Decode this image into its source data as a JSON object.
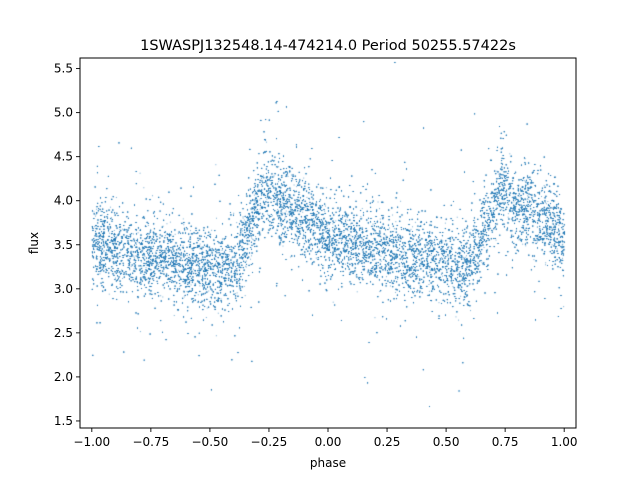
{
  "chart_data": {
    "type": "scatter",
    "title": "1SWASPJ132548.14-474214.0 Period 50255.57422s",
    "xlabel": "phase",
    "ylabel": "flux",
    "xlim": [
      -1.05,
      1.05
    ],
    "ylim": [
      1.42,
      5.62
    ],
    "xticks": [
      {
        "value": -1.0,
        "label": "−1.00"
      },
      {
        "value": -0.75,
        "label": "−0.75"
      },
      {
        "value": -0.5,
        "label": "−0.50"
      },
      {
        "value": -0.25,
        "label": "−0.25"
      },
      {
        "value": 0.0,
        "label": "0.00"
      },
      {
        "value": 0.25,
        "label": "0.25"
      },
      {
        "value": 0.5,
        "label": "0.50"
      },
      {
        "value": 0.75,
        "label": "0.75"
      },
      {
        "value": 1.0,
        "label": "1.00"
      }
    ],
    "yticks": [
      {
        "value": 1.5,
        "label": "1.5"
      },
      {
        "value": 2.0,
        "label": "2.0"
      },
      {
        "value": 2.5,
        "label": "2.5"
      },
      {
        "value": 3.0,
        "label": "3.0"
      },
      {
        "value": 3.5,
        "label": "3.5"
      },
      {
        "value": 4.0,
        "label": "4.0"
      },
      {
        "value": 4.5,
        "label": "4.5"
      },
      {
        "value": 5.0,
        "label": "5.0"
      },
      {
        "value": 5.5,
        "label": "5.5"
      }
    ],
    "grid": false,
    "legend": "none",
    "marker_color": "#1f77b4",
    "series": [
      {
        "profile_phase": [
          -1.0,
          -0.9,
          -0.8,
          -0.7,
          -0.6,
          -0.5,
          -0.42,
          -0.36,
          -0.3,
          -0.27,
          -0.2,
          -0.1,
          0.0,
          0.1,
          0.2,
          0.3,
          0.4,
          0.5,
          0.58,
          0.64,
          0.7,
          0.73,
          0.8,
          0.9,
          1.0
        ],
        "profile_flux": [
          3.55,
          3.45,
          3.4,
          3.35,
          3.3,
          3.25,
          3.2,
          3.5,
          3.9,
          4.15,
          3.95,
          3.8,
          3.6,
          3.5,
          3.45,
          3.4,
          3.35,
          3.3,
          3.25,
          3.5,
          3.9,
          4.15,
          3.95,
          3.8,
          3.6
        ],
        "scatter_sigma": 0.22,
        "n_points": 26000
      }
    ]
  }
}
